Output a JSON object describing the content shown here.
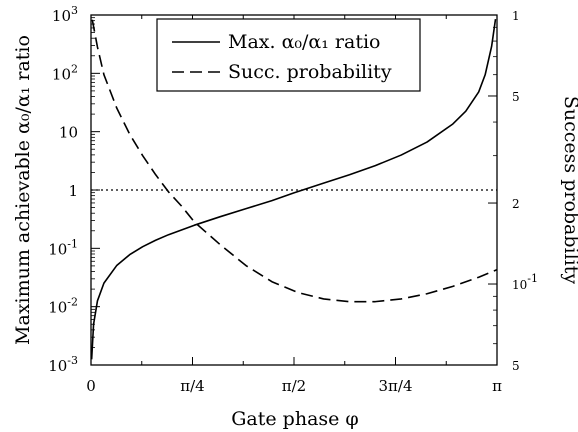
{
  "chart_data": {
    "type": "line",
    "xlabel": "Gate phase φ",
    "ylabel_left": "Maximum achievable α₀/α₁ ratio",
    "ylabel_right": "Success probability",
    "xlim": [
      0,
      3.14159
    ],
    "xticks": [
      {
        "value": 0,
        "label": "0"
      },
      {
        "value": 0.7854,
        "label": "π/4"
      },
      {
        "value": 1.5708,
        "label": "π/2"
      },
      {
        "value": 2.3562,
        "label": "3π/4"
      },
      {
        "value": 3.14159,
        "label": "π"
      }
    ],
    "ylim_left": [
      0.001,
      1000
    ],
    "yscale_left": "log",
    "yticks_left": [
      {
        "value": 1000,
        "base": "10",
        "exp": "3"
      },
      {
        "value": 100,
        "base": "10",
        "exp": "2"
      },
      {
        "value": 10,
        "base": "10",
        "exp": ""
      },
      {
        "value": 1,
        "base": "1",
        "exp": ""
      },
      {
        "value": 0.1,
        "base": "10",
        "exp": "-1"
      },
      {
        "value": 0.01,
        "base": "10",
        "exp": "-2"
      },
      {
        "value": 0.001,
        "base": "10",
        "exp": "-3"
      }
    ],
    "ylim_right": [
      0.05,
      1
    ],
    "yscale_right": "log",
    "yticks_right": [
      {
        "value": 1,
        "base": "1",
        "exp": ""
      },
      {
        "value": 0.5,
        "base": "5",
        "exp": ""
      },
      {
        "value": 0.2,
        "base": "2",
        "exp": ""
      },
      {
        "value": 0.1,
        "base": "10",
        "exp": "-1"
      },
      {
        "value": 0.05,
        "base": "5",
        "exp": ""
      }
    ],
    "legend": {
      "placement": "top-center",
      "entries": [
        "Max. α₀/α₁  ratio",
        "Succ. probability"
      ]
    },
    "series": [
      {
        "name": "Max. α₀/α₁  ratio",
        "axis": "left",
        "style": "solid",
        "x": [
          0.005,
          0.02,
          0.05,
          0.1,
          0.2,
          0.3,
          0.4,
          0.5,
          0.6,
          0.8,
          1.0,
          1.2,
          1.4,
          1.57,
          1.8,
          2.0,
          2.2,
          2.4,
          2.6,
          2.8,
          2.9,
          3.0,
          3.05,
          3.1,
          3.13
        ],
        "y": [
          0.00125,
          0.005,
          0.0126,
          0.0253,
          0.0511,
          0.0781,
          0.1068,
          0.1376,
          0.1713,
          0.2493,
          0.3487,
          0.4785,
          0.6572,
          0.8924,
          1.31,
          1.826,
          2.615,
          3.971,
          6.64,
          13.55,
          22.4,
          48.0,
          94.5,
          290,
          850
        ]
      },
      {
        "name": "Succ. probability",
        "axis": "right",
        "style": "dashed",
        "x": [
          0.01,
          0.05,
          0.1,
          0.2,
          0.3,
          0.4,
          0.5,
          0.6,
          0.7,
          0.8,
          1.0,
          1.2,
          1.4,
          1.6,
          1.8,
          2.0,
          2.2,
          2.4,
          2.6,
          2.8,
          3.0,
          3.14
        ],
        "y": [
          0.96,
          0.76,
          0.6,
          0.45,
          0.36,
          0.3,
          0.255,
          0.22,
          0.195,
          0.17,
          0.14,
          0.117,
          0.102,
          0.093,
          0.088,
          0.086,
          0.086,
          0.088,
          0.092,
          0.098,
          0.106,
          0.113
        ]
      },
      {
        "name": "",
        "axis": "left",
        "style": "dotted",
        "x": [
          0,
          3.14159
        ],
        "y": [
          1,
          1
        ]
      }
    ]
  }
}
